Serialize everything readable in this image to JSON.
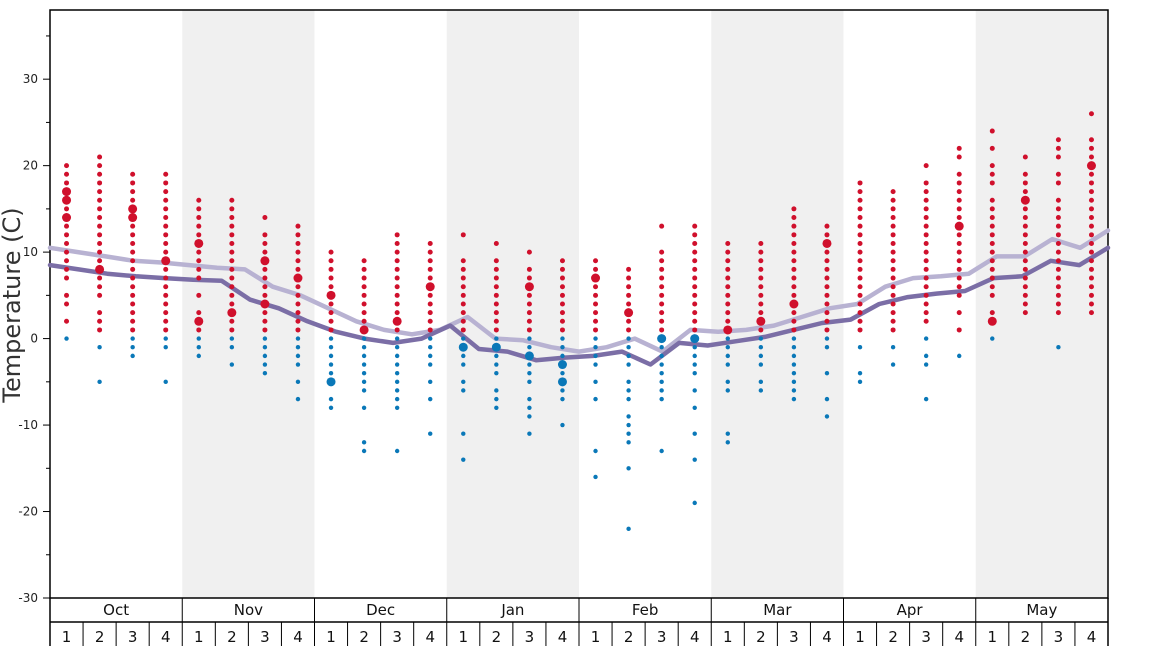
{
  "chart_data": {
    "type": "scatter",
    "ylabel": "Temperature (C)",
    "ylim": [
      -30,
      38
    ],
    "yticks": [
      -30,
      -20,
      -10,
      0,
      10,
      20,
      30
    ],
    "months": [
      "Oct",
      "Nov",
      "Dec",
      "Jan",
      "Feb",
      "Mar",
      "Apr",
      "May"
    ],
    "weeks": [
      "1",
      "2",
      "3",
      "4"
    ],
    "colors": {
      "warm": "#d0102c",
      "cold": "#0a78b8",
      "line_dark": "#7b6ea6",
      "line_light": "#b8b2d2",
      "band": "#f0f0f0"
    },
    "lines": {
      "upper": [
        10.5,
        10,
        9.5,
        9,
        8.8,
        8.5,
        8.2,
        8,
        6,
        5,
        3.5,
        2,
        1,
        0.5,
        1,
        2.5,
        0,
        -0.2,
        -1,
        -1.5,
        -1,
        0,
        -1.5,
        1,
        0.8,
        1,
        1.5,
        2.5,
        3.5,
        4,
        6,
        7,
        7.2,
        7.5,
        9.5,
        9.5,
        11.5,
        10.5,
        12.5
      ],
      "lower": [
        8.5,
        8,
        7.5,
        7.2,
        7,
        6.8,
        6.7,
        4.5,
        3.5,
        2,
        0.8,
        0,
        -0.5,
        0,
        1.5,
        -1.2,
        -1.5,
        -2.5,
        -2.2,
        -2,
        -1.5,
        -3,
        -0.5,
        -0.8,
        -0.3,
        0.2,
        1,
        1.8,
        2.2,
        4,
        4.8,
        5.2,
        5.5,
        7,
        7.2,
        9,
        8.5,
        10.5
      ]
    },
    "dots": [
      {
        "warm": [
          20,
          19,
          18,
          17,
          16,
          15,
          14,
          13,
          12,
          11,
          10,
          9,
          8,
          7,
          5,
          4,
          2
        ],
        "cold": [
          0
        ]
      },
      {
        "warm": [
          21,
          20,
          19,
          18,
          17,
          16,
          15,
          14,
          13,
          12,
          11,
          10,
          9,
          8,
          7,
          6,
          5,
          3,
          2,
          1
        ],
        "cold": [
          -1,
          -5
        ]
      },
      {
        "warm": [
          19,
          18,
          17,
          16,
          15,
          14,
          13,
          12,
          11,
          10,
          9,
          8,
          7,
          6,
          5,
          4,
          3,
          2,
          1
        ],
        "cold": [
          0,
          -1,
          -2
        ]
      },
      {
        "warm": [
          19,
          18,
          17,
          16,
          15,
          14,
          13,
          12,
          11,
          10,
          9,
          8,
          7,
          6,
          5,
          4,
          3,
          2,
          1
        ],
        "cold": [
          0,
          -1,
          -5
        ]
      },
      {
        "warm": [
          16,
          15,
          14,
          13,
          12,
          11,
          10,
          9,
          8,
          7,
          5,
          3,
          2,
          1
        ],
        "cold": [
          0,
          -1,
          -2
        ]
      },
      {
        "warm": [
          16,
          15,
          14,
          13,
          12,
          11,
          10,
          9,
          8,
          7,
          6,
          5,
          4,
          3,
          2,
          1
        ],
        "cold": [
          0,
          -1,
          -3
        ]
      },
      {
        "warm": [
          14,
          12,
          11,
          10,
          9,
          8,
          7,
          6,
          5,
          4,
          3,
          2,
          1
        ],
        "cold": [
          0,
          -1,
          -2,
          -3,
          -4
        ]
      },
      {
        "warm": [
          13,
          12,
          11,
          10,
          9,
          8,
          7,
          6,
          5,
          4,
          3,
          2,
          1
        ],
        "cold": [
          0,
          -1,
          -2,
          -3,
          -5,
          -7
        ]
      },
      {
        "warm": [
          10,
          9,
          8,
          7,
          6,
          5,
          4,
          3,
          2,
          1
        ],
        "cold": [
          0,
          -1,
          -2,
          -3,
          -4,
          -5,
          -7,
          -8
        ]
      },
      {
        "warm": [
          9,
          8,
          7,
          6,
          5,
          4,
          3,
          2,
          1
        ],
        "cold": [
          0,
          -1,
          -2,
          -3,
          -4,
          -5,
          -6,
          -8,
          -12,
          -13
        ]
      },
      {
        "warm": [
          12,
          11,
          10,
          9,
          8,
          7,
          6,
          5,
          4,
          3,
          2,
          1
        ],
        "cold": [
          0,
          -1,
          -2,
          -3,
          -4,
          -5,
          -6,
          -7,
          -8,
          -13
        ]
      },
      {
        "warm": [
          11,
          10,
          9,
          8,
          7,
          6,
          5,
          4,
          3,
          2,
          1
        ],
        "cold": [
          0,
          -1,
          -2,
          -3,
          -5,
          -7,
          -11
        ]
      },
      {
        "warm": [
          12,
          9,
          8,
          7,
          6,
          5,
          4,
          3,
          2,
          1
        ],
        "cold": [
          0,
          -1,
          -2,
          -3,
          -5,
          -6,
          -11,
          -14
        ]
      },
      {
        "warm": [
          11,
          9,
          8,
          7,
          6,
          5,
          4,
          3,
          2,
          1
        ],
        "cold": [
          0,
          -1,
          -2,
          -3,
          -4,
          -6,
          -7,
          -8
        ]
      },
      {
        "warm": [
          10,
          8,
          7,
          6,
          5,
          4,
          3,
          2,
          1
        ],
        "cold": [
          0,
          -1,
          -2,
          -3,
          -4,
          -5,
          -7,
          -8,
          -9,
          -11
        ]
      },
      {
        "warm": [
          9,
          8,
          7,
          6,
          5,
          4,
          3,
          2,
          1
        ],
        "cold": [
          0,
          -1,
          -2,
          -3,
          -4,
          -5,
          -6,
          -7,
          -10
        ]
      },
      {
        "warm": [
          9,
          8,
          7,
          6,
          5,
          4,
          3,
          2,
          1
        ],
        "cold": [
          0,
          -1,
          -2,
          -3,
          -5,
          -7,
          -13,
          -16
        ]
      },
      {
        "warm": [
          8,
          7,
          6,
          5,
          4,
          3,
          2,
          1
        ],
        "cold": [
          0,
          -1,
          -2,
          -3,
          -5,
          -6,
          -7,
          -9,
          -10,
          -11,
          -12,
          -15,
          -22
        ]
      },
      {
        "warm": [
          13,
          10,
          9,
          8,
          7,
          6,
          5,
          4,
          3,
          2,
          1
        ],
        "cold": [
          0,
          -1,
          -2,
          -3,
          -4,
          -5,
          -6,
          -7,
          -13
        ]
      },
      {
        "warm": [
          13,
          12,
          11,
          10,
          9,
          8,
          7,
          6,
          5,
          4,
          3,
          2,
          1
        ],
        "cold": [
          0,
          -1,
          -2,
          -3,
          -4,
          -6,
          -8,
          -11,
          -14,
          -19
        ]
      },
      {
        "warm": [
          11,
          10,
          9,
          8,
          7,
          6,
          5,
          4,
          3,
          2,
          1
        ],
        "cold": [
          0,
          -1,
          -2,
          -3,
          -5,
          -6,
          -11,
          -12
        ]
      },
      {
        "warm": [
          11,
          10,
          9,
          8,
          7,
          6,
          5,
          4,
          3,
          2,
          1
        ],
        "cold": [
          0,
          -1,
          -2,
          -3,
          -5,
          -6
        ]
      },
      {
        "warm": [
          15,
          14,
          13,
          12,
          11,
          10,
          9,
          8,
          7,
          6,
          5,
          4,
          3,
          2,
          1
        ],
        "cold": [
          0,
          -1,
          -2,
          -3,
          -4,
          -5,
          -6,
          -7
        ]
      },
      {
        "warm": [
          13,
          12,
          11,
          10,
          9,
          8,
          7,
          6,
          5,
          4,
          3,
          2,
          1
        ],
        "cold": [
          0,
          -1,
          -4,
          -7,
          -9
        ]
      },
      {
        "warm": [
          18,
          17,
          16,
          15,
          14,
          13,
          12,
          11,
          10,
          9,
          8,
          7,
          6,
          5,
          4,
          3,
          2,
          1
        ],
        "cold": [
          -1,
          -4,
          -5
        ]
      },
      {
        "warm": [
          17,
          16,
          15,
          14,
          13,
          12,
          11,
          10,
          9,
          8,
          7,
          6,
          5,
          4,
          3,
          2,
          1
        ],
        "cold": [
          -1,
          -3
        ]
      },
      {
        "warm": [
          20,
          18,
          17,
          16,
          15,
          14,
          13,
          12,
          11,
          10,
          9,
          8,
          7,
          6,
          5,
          4,
          3,
          2
        ],
        "cold": [
          0,
          -2,
          -3,
          -7
        ]
      },
      {
        "warm": [
          22,
          21,
          19,
          18,
          17,
          16,
          15,
          14,
          13,
          12,
          11,
          10,
          9,
          8,
          7,
          6,
          5,
          3,
          1
        ],
        "cold": [
          -2
        ]
      },
      {
        "warm": [
          24,
          22,
          20,
          19,
          18,
          16,
          15,
          14,
          13,
          12,
          11,
          10,
          9,
          8,
          7,
          6,
          5,
          3,
          2
        ],
        "cold": [
          0
        ]
      },
      {
        "warm": [
          21,
          19,
          18,
          17,
          16,
          15,
          14,
          13,
          12,
          11,
          10,
          9,
          8,
          7,
          6,
          5,
          4,
          3
        ],
        "cold": []
      },
      {
        "warm": [
          23,
          22,
          21,
          19,
          18,
          16,
          15,
          14,
          13,
          12,
          11,
          10,
          9,
          8,
          7,
          6,
          5,
          4,
          3
        ],
        "cold": [
          -1
        ]
      },
      {
        "warm": [
          26,
          23,
          22,
          21,
          20,
          19,
          18,
          17,
          16,
          15,
          14,
          13,
          12,
          11,
          10,
          9,
          8,
          7,
          6,
          5,
          4,
          3
        ],
        "cold": []
      }
    ],
    "big_dots": [
      {
        "warm": [
          16,
          14,
          17
        ],
        "cold": []
      },
      {
        "warm": [
          8
        ],
        "cold": []
      },
      {
        "warm": [
          14,
          15
        ],
        "cold": []
      },
      {
        "warm": [
          9
        ],
        "cold": []
      },
      {
        "warm": [
          11,
          2
        ],
        "cold": []
      },
      {
        "warm": [
          3
        ],
        "cold": []
      },
      {
        "warm": [
          9,
          4
        ],
        "cold": []
      },
      {
        "warm": [
          7
        ],
        "cold": []
      },
      {
        "warm": [
          5
        ],
        "cold": [
          -5
        ]
      },
      {
        "warm": [
          1
        ],
        "cold": []
      },
      {
        "warm": [
          2
        ],
        "cold": []
      },
      {
        "warm": [
          6
        ],
        "cold": []
      },
      {
        "warm": [],
        "cold": [
          -1
        ]
      },
      {
        "warm": [],
        "cold": [
          -1
        ]
      },
      {
        "warm": [
          6
        ],
        "cold": [
          -2
        ]
      },
      {
        "warm": [],
        "cold": [
          -3,
          -5
        ]
      },
      {
        "warm": [
          7
        ],
        "cold": []
      },
      {
        "warm": [
          3
        ],
        "cold": []
      },
      {
        "warm": [],
        "cold": [
          0
        ]
      },
      {
        "warm": [],
        "cold": [
          0
        ]
      },
      {
        "warm": [
          1
        ],
        "cold": []
      },
      {
        "warm": [
          2
        ],
        "cold": []
      },
      {
        "warm": [
          4
        ],
        "cold": []
      },
      {
        "warm": [
          11
        ],
        "cold": []
      },
      {
        "warm": [],
        "cold": []
      },
      {
        "warm": [],
        "cold": []
      },
      {
        "warm": [],
        "cold": []
      },
      {
        "warm": [
          13
        ],
        "cold": []
      },
      {
        "warm": [
          2
        ],
        "cold": []
      },
      {
        "warm": [
          16
        ],
        "cold": []
      },
      {
        "warm": [],
        "cold": []
      },
      {
        "warm": [
          20
        ],
        "cold": []
      }
    ]
  }
}
